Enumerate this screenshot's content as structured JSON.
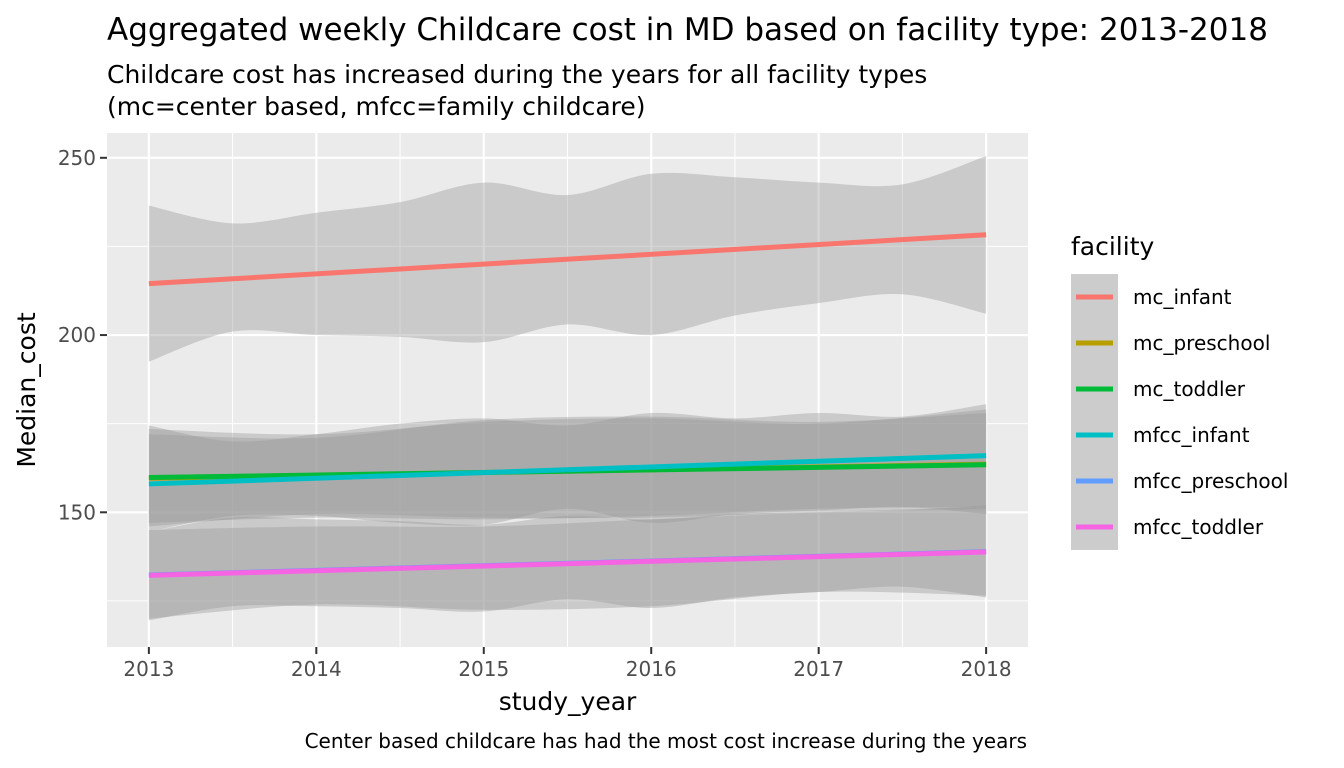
{
  "chart_data": {
    "type": "line",
    "title": "Aggregated weekly Childcare cost in MD based on facility type: 2013-2018",
    "subtitle_lines": [
      "Childcare cost has increased during the years for all facility types",
      "(mc=center based, mfcc=family childcare)"
    ],
    "caption": "Center based childcare has had the most cost increase during the years",
    "xlabel": "study_year",
    "ylabel": "Median_cost",
    "x_ticks": [
      2013,
      2014,
      2015,
      2016,
      2017,
      2018
    ],
    "y_ticks": [
      150,
      200,
      250
    ],
    "xlim": [
      2012.75,
      2018.25
    ],
    "ylim": [
      112,
      257
    ],
    "grid": true,
    "legend_title": "facility",
    "legend_position": "right",
    "series": [
      {
        "name": "mc_infant",
        "color": "#F8766D",
        "x": [
          2013,
          2018
        ],
        "y": [
          214.5,
          228.3
        ],
        "band_x": [
          2013,
          2013.5,
          2014,
          2014.5,
          2015,
          2015.5,
          2016,
          2016.5,
          2017,
          2017.5,
          2018
        ],
        "band_upper": [
          236.5,
          231.5,
          234.5,
          237.5,
          243,
          239.5,
          245.5,
          244.5,
          243,
          242.5,
          250.5
        ],
        "band_lower": [
          192.5,
          201,
          200,
          199.5,
          198,
          203,
          200,
          205.5,
          209,
          211.5,
          206
        ]
      },
      {
        "name": "mc_preschool",
        "color": "#B79F00",
        "x": [
          2013,
          2018
        ],
        "y": [
          159.6,
          163.6
        ],
        "band_x": [
          2013,
          2014,
          2015,
          2016,
          2017,
          2018
        ],
        "band_upper": [
          172,
          171,
          176,
          177,
          175.5,
          178
        ],
        "band_lower": [
          147,
          148.5,
          148,
          149,
          151,
          151.5
        ]
      },
      {
        "name": "mc_toddler",
        "color": "#00BA38",
        "x": [
          2013,
          2018
        ],
        "y": [
          159.8,
          163.4
        ],
        "band_x": [
          2013,
          2014,
          2015,
          2016,
          2017,
          2018
        ],
        "band_upper": [
          173.5,
          172,
          175.5,
          176.5,
          175,
          179
        ],
        "band_lower": [
          146,
          149.5,
          148.5,
          148.5,
          150,
          151
        ]
      },
      {
        "name": "mfcc_infant",
        "color": "#00BFC4",
        "x": [
          2013,
          2018
        ],
        "y": [
          158.0,
          166.0
        ],
        "band_x": [
          2013,
          2013.5,
          2014,
          2014.5,
          2015,
          2015.5,
          2016,
          2016.5,
          2017,
          2017.5,
          2018
        ],
        "band_upper": [
          174.5,
          170,
          172,
          175,
          176.5,
          174.5,
          178,
          176.5,
          178,
          177,
          180.5
        ],
        "band_lower": [
          144.5,
          149,
          149,
          147,
          146.5,
          151,
          147,
          149.5,
          150.5,
          151.5,
          149.5
        ]
      },
      {
        "name": "mfcc_preschool",
        "color": "#619CFF",
        "x": [
          2013,
          2018
        ],
        "y": [
          132.3,
          138.9
        ],
        "band_x": [
          2013,
          2014,
          2015,
          2016,
          2017,
          2018
        ],
        "band_upper": [
          145,
          146,
          146,
          148,
          150,
          151.5
        ],
        "band_lower": [
          120,
          124,
          122.5,
          123.5,
          127.5,
          126.5
        ]
      },
      {
        "name": "mfcc_toddler",
        "color": "#F564E3",
        "x": [
          2013,
          2018
        ],
        "y": [
          132.2,
          138.8
        ],
        "band_x": [
          2013,
          2013.5,
          2014,
          2014.5,
          2015,
          2015.5,
          2016,
          2016.5,
          2017,
          2017.5,
          2018
        ],
        "band_upper": [
          144.5,
          148.5,
          148,
          147.5,
          146.5,
          149,
          148,
          149.5,
          150,
          150.5,
          152
        ],
        "band_lower": [
          119.5,
          123.5,
          123.5,
          123,
          122,
          125.5,
          123,
          126,
          127.5,
          129,
          126
        ]
      }
    ]
  },
  "colors": {
    "panel": "#EBEBEB",
    "grid_major": "#FFFFFF",
    "band": "#999999",
    "axis_text": "#4D4D4D",
    "axis_tick": "#333333",
    "legend_key": "#CCCCCC"
  }
}
